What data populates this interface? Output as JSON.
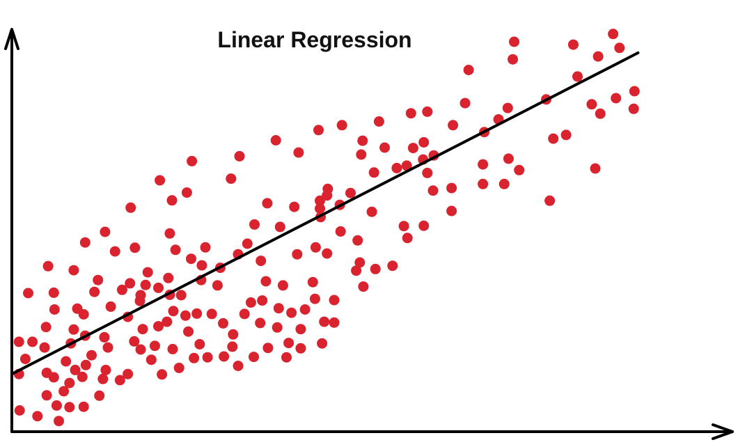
{
  "chart_data": {
    "type": "scatter",
    "title": "Linear Regression",
    "xlabel": "",
    "ylabel": "",
    "xlim": [
      0,
      100
    ],
    "ylim": [
      0,
      100
    ],
    "grid": false,
    "legend": "none",
    "colors": {
      "points": "#d9232e",
      "axes": "#000000",
      "fit_line": "#000000"
    },
    "series": [
      {
        "points": [
          [
            1.0,
            14.1
          ],
          [
            1.0,
            22.0
          ],
          [
            1.1,
            5.2
          ],
          [
            1.9,
            17.8
          ],
          [
            2.3,
            33.9
          ],
          [
            2.9,
            22.0
          ],
          [
            3.6,
            3.8
          ],
          [
            4.6,
            20.6
          ],
          [
            4.8,
            25.6
          ],
          [
            4.9,
            8.9
          ],
          [
            4.9,
            14.4
          ],
          [
            5.1,
            40.5
          ],
          [
            5.9,
            13.3
          ],
          [
            5.9,
            34.0
          ],
          [
            6.0,
            29.9
          ],
          [
            6.3,
            6.4
          ],
          [
            6.6,
            2.6
          ],
          [
            7.3,
            9.9
          ],
          [
            7.6,
            17.2
          ],
          [
            8.1,
            6.0
          ],
          [
            8.1,
            11.9
          ],
          [
            8.3,
            21.6
          ],
          [
            8.7,
            39.5
          ],
          [
            8.7,
            25.0
          ],
          [
            8.9,
            15.1
          ],
          [
            9.2,
            30.1
          ],
          [
            9.9,
            13.4
          ],
          [
            10.1,
            6.1
          ],
          [
            10.1,
            28.7
          ],
          [
            10.3,
            23.5
          ],
          [
            10.3,
            46.3
          ],
          [
            10.4,
            16.3
          ],
          [
            11.2,
            18.7
          ],
          [
            11.6,
            34.2
          ],
          [
            12.1,
            37.1
          ],
          [
            12.3,
            8.8
          ],
          [
            12.8,
            12.9
          ],
          [
            13.0,
            23.1
          ],
          [
            13.1,
            48.9
          ],
          [
            13.2,
            15.1
          ],
          [
            13.5,
            20.6
          ],
          [
            13.9,
            30.6
          ],
          [
            14.5,
            44.1
          ],
          [
            15.2,
            12.6
          ],
          [
            15.5,
            34.7
          ],
          [
            16.3,
            14.1
          ],
          [
            16.3,
            28.1
          ],
          [
            16.6,
            36.3
          ],
          [
            16.7,
            54.8
          ],
          [
            17.2,
            22.1
          ],
          [
            17.3,
            45.0
          ],
          [
            18.0,
            32.0
          ],
          [
            18.1,
            33.4
          ],
          [
            18.1,
            20.1
          ],
          [
            18.4,
            25.1
          ],
          [
            18.8,
            35.9
          ],
          [
            19.1,
            39.0
          ],
          [
            19.6,
            17.6
          ],
          [
            20.1,
            21.0
          ],
          [
            20.6,
            35.2
          ],
          [
            20.6,
            25.8
          ],
          [
            20.8,
            61.5
          ],
          [
            21.1,
            14.0
          ],
          [
            21.8,
            26.9
          ],
          [
            22.0,
            37.6
          ],
          [
            22.2,
            48.5
          ],
          [
            22.2,
            33.5
          ],
          [
            22.5,
            56.6
          ],
          [
            22.6,
            20.2
          ],
          [
            22.7,
            29.5
          ],
          [
            23.0,
            44.5
          ],
          [
            23.5,
            15.6
          ],
          [
            23.8,
            33.4
          ],
          [
            24.4,
            28.4
          ],
          [
            24.6,
            58.5
          ],
          [
            24.8,
            24.5
          ],
          [
            25.2,
            42.3
          ],
          [
            25.3,
            66.2
          ],
          [
            25.6,
            18.0
          ],
          [
            26.0,
            28.9
          ],
          [
            26.4,
            21.4
          ],
          [
            26.6,
            37.1
          ],
          [
            26.7,
            40.7
          ],
          [
            27.2,
            45.1
          ],
          [
            27.5,
            18.2
          ],
          [
            28.1,
            28.8
          ],
          [
            28.9,
            35.8
          ],
          [
            29.3,
            40.1
          ],
          [
            29.7,
            26.5
          ],
          [
            29.8,
            18.4
          ],
          [
            30.8,
            61.9
          ],
          [
            31.0,
            20.8
          ],
          [
            31.1,
            23.8
          ],
          [
            31.8,
            43.4
          ],
          [
            31.8,
            16.1
          ],
          [
            32.0,
            67.4
          ],
          [
            32.7,
            28.8
          ],
          [
            33.1,
            46.0
          ],
          [
            33.6,
            31.6
          ],
          [
            34.0,
            18.3
          ],
          [
            34.1,
            50.7
          ],
          [
            34.9,
            26.6
          ],
          [
            35.0,
            41.8
          ],
          [
            35.2,
            32.1
          ],
          [
            35.7,
            36.8
          ],
          [
            35.9,
            55.9
          ],
          [
            36.0,
            20.5
          ],
          [
            37.1,
            71.3
          ],
          [
            37.3,
            25.5
          ],
          [
            37.5,
            30.2
          ],
          [
            37.7,
            50.1
          ],
          [
            38.1,
            35.8
          ],
          [
            38.6,
            18.2
          ],
          [
            38.9,
            21.7
          ],
          [
            39.3,
            29.1
          ],
          [
            39.7,
            55.0
          ],
          [
            40.1,
            43.4
          ],
          [
            40.3,
            68.3
          ],
          [
            40.6,
            25.1
          ],
          [
            40.6,
            20.4
          ],
          [
            41.2,
            29.9
          ],
          [
            42.3,
            36.6
          ],
          [
            42.6,
            32.5
          ],
          [
            42.7,
            45.1
          ],
          [
            43.1,
            73.8
          ],
          [
            43.3,
            54.6
          ],
          [
            43.3,
            56.5
          ],
          [
            43.4,
            52.5
          ],
          [
            43.6,
            21.6
          ],
          [
            43.9,
            26.9
          ],
          [
            44.3,
            57.8
          ],
          [
            44.3,
            43.6
          ],
          [
            44.4,
            59.4
          ],
          [
            45.3,
            32.2
          ],
          [
            45.3,
            26.7
          ],
          [
            46.1,
            55.5
          ],
          [
            46.2,
            49.0
          ],
          [
            46.4,
            75.0
          ],
          [
            47.6,
            58.4
          ],
          [
            48.4,
            39.4
          ],
          [
            48.6,
            46.8
          ],
          [
            48.9,
            41.4
          ],
          [
            49.1,
            67.8
          ],
          [
            49.3,
            71.2
          ],
          [
            49.4,
            35.5
          ],
          [
            50.6,
            53.8
          ],
          [
            50.9,
            63.4
          ],
          [
            51.1,
            39.8
          ],
          [
            51.6,
            75.9
          ],
          [
            52.4,
            69.5
          ],
          [
            53.5,
            40.6
          ],
          [
            54.1,
            64.5
          ],
          [
            55.1,
            50.3
          ],
          [
            55.5,
            65.1
          ],
          [
            55.6,
            47.4
          ],
          [
            56.1,
            77.9
          ],
          [
            56.4,
            69.4
          ],
          [
            57.8,
            66.6
          ],
          [
            57.9,
            50.4
          ],
          [
            57.9,
            70.8
          ],
          [
            58.4,
            63.3
          ],
          [
            58.4,
            78.3
          ],
          [
            59.2,
            59.0
          ],
          [
            59.3,
            67.6
          ],
          [
            61.8,
            54.0
          ],
          [
            61.8,
            59.6
          ],
          [
            62.0,
            75.0
          ],
          [
            63.7,
            80.4
          ],
          [
            64.2,
            88.5
          ],
          [
            66.2,
            60.6
          ],
          [
            66.2,
            65.4
          ],
          [
            66.4,
            73.3
          ],
          [
            68.4,
            76.4
          ],
          [
            69.2,
            60.6
          ],
          [
            69.7,
            79.2
          ],
          [
            69.8,
            66.8
          ],
          [
            70.4,
            91.1
          ],
          [
            70.6,
            95.4
          ],
          [
            71.3,
            64.0
          ],
          [
            75.1,
            81.3
          ],
          [
            75.6,
            56.5
          ],
          [
            76.1,
            71.7
          ],
          [
            77.9,
            72.6
          ],
          [
            78.9,
            94.7
          ],
          [
            79.5,
            86.9
          ],
          [
            81.5,
            80.1
          ],
          [
            82.0,
            64.4
          ],
          [
            82.4,
            91.8
          ],
          [
            82.7,
            77.8
          ],
          [
            84.5,
            97.3
          ],
          [
            84.9,
            81.6
          ],
          [
            85.4,
            93.9
          ],
          [
            87.4,
            79.0
          ],
          [
            87.5,
            83.3
          ]
        ]
      }
    ],
    "fit_line": {
      "x": [
        0,
        88.0
      ],
      "y": [
        14.1,
        92.7
      ]
    }
  }
}
